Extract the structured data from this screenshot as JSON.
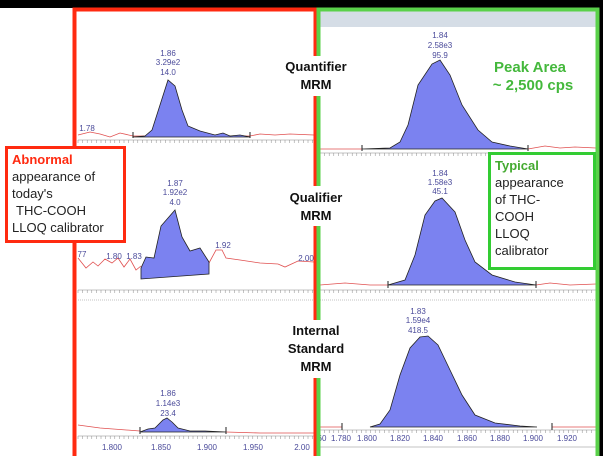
{
  "labels": {
    "quantifier": [
      "Quantifier",
      "MRM"
    ],
    "qualifier": [
      "Qualifier",
      "MRM"
    ],
    "internal_standard": [
      "Internal",
      "Standard",
      "MRM"
    ]
  },
  "abnormal_note": {
    "title": "Abnormal",
    "lines": [
      "appearance of",
      "today's",
      "THC-COOH",
      "LLOQ calibrator"
    ]
  },
  "typical_note": {
    "title": "Typical",
    "lines": [
      "appearance",
      "of THC-",
      "COOH",
      "LLOQ",
      "calibrator"
    ]
  },
  "peak_area_note": [
    "Peak Area",
    "~ 2,500 cps"
  ],
  "colors": {
    "abnormal": "#ff2a10",
    "typical": "#33cc33",
    "peak_fill": "#7b82f0",
    "noise": "#e05050"
  },
  "chart_data": [
    {
      "type": "line",
      "title": "Abnormal Quantifier MRM",
      "peak": {
        "rt": "1.86",
        "height": "3.29e2",
        "area": "14.0"
      },
      "other_labels": [
        "1.78"
      ]
    },
    {
      "type": "line",
      "title": "Abnormal Qualifier MRM",
      "peak": {
        "rt": "1.87",
        "height": "1.92e2",
        "area": "4.0"
      },
      "other_labels": [
        "77",
        "1.80",
        "1.83",
        "1.92",
        "2.00"
      ]
    },
    {
      "type": "line",
      "title": "Abnormal Internal Standard MRM",
      "peak": {
        "rt": "1.86",
        "height": "1.14e3",
        "area": "23.4"
      },
      "x_ticks": [
        "1.800",
        "1.850",
        "1.900",
        "1.950",
        "2.00"
      ]
    },
    {
      "type": "line",
      "title": "Typical Quantifier MRM",
      "peak": {
        "rt": "1.84",
        "height": "2.58e3",
        "area": "95.9"
      }
    },
    {
      "type": "line",
      "title": "Typical Qualifier MRM",
      "peak": {
        "rt": "1.84",
        "height": "1.58e3",
        "area": "45.1"
      }
    },
    {
      "type": "line",
      "title": "Typical Internal Standard MRM",
      "peak": {
        "rt": "1.83",
        "height": "1.59e4",
        "area": "418.5"
      },
      "x_ticks": [
        "60",
        "1.780",
        "1.800",
        "1.820",
        "1.840",
        "1.860",
        "1.880",
        "1.900",
        "1.920"
      ]
    }
  ]
}
